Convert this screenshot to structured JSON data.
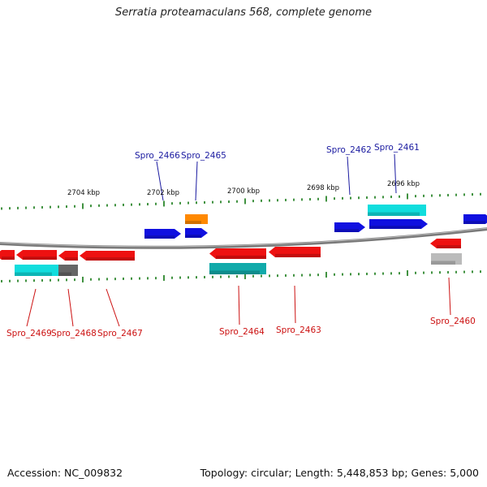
{
  "title": "Serratia proteamaculans 568, complete genome",
  "footer": {
    "accession": "Accession: NC_009832",
    "summary": "Topology: circular; Length: 5,448,853 bp; Genes: 5,000"
  },
  "kbp_labels": [
    "2704 kbp",
    "2702 kbp",
    "2700 kbp",
    "2698 kbp",
    "2696 kbp"
  ],
  "genes_top": [
    "Spro_2466",
    "Spro_2465",
    "Spro_2462",
    "Spro_2461"
  ],
  "genes_bottom": [
    "Spro_2469",
    "Spro_2468",
    "Spro_2467",
    "Spro_2464",
    "Spro_2463",
    "Spro_2460"
  ],
  "colors": {
    "forward": "#1010e0",
    "reverse": "#ee1111",
    "cyan": "#11dddd",
    "teal": "#11aaaa",
    "orange": "#ff8800",
    "darkgray": "#666666",
    "lightgray": "#bbbbbb",
    "tick": "#117711",
    "backbone": "#888888",
    "label_top": "#1a1aa0",
    "label_bottom": "#cc1111"
  }
}
